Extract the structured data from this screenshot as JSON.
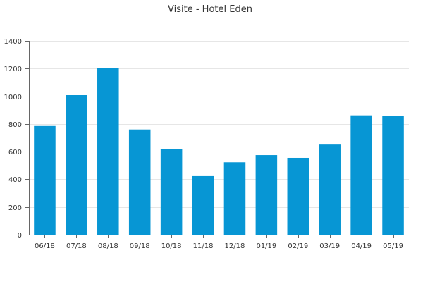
{
  "chart_data": {
    "type": "bar",
    "title": "Visite - Hotel Eden",
    "xlabel": "",
    "ylabel": "",
    "categories": [
      "06/18",
      "07/18",
      "08/18",
      "09/18",
      "10/18",
      "11/18",
      "12/18",
      "01/19",
      "02/19",
      "03/19",
      "04/19",
      "05/19"
    ],
    "values": [
      785,
      1008,
      1205,
      760,
      617,
      428,
      523,
      575,
      555,
      656,
      862,
      857
    ],
    "ylim": [
      0,
      1400
    ],
    "yticks": [
      0,
      200,
      400,
      600,
      800,
      1000,
      1200,
      1400
    ],
    "grid": true,
    "legend": "none",
    "bar_color": "#0796d4"
  }
}
